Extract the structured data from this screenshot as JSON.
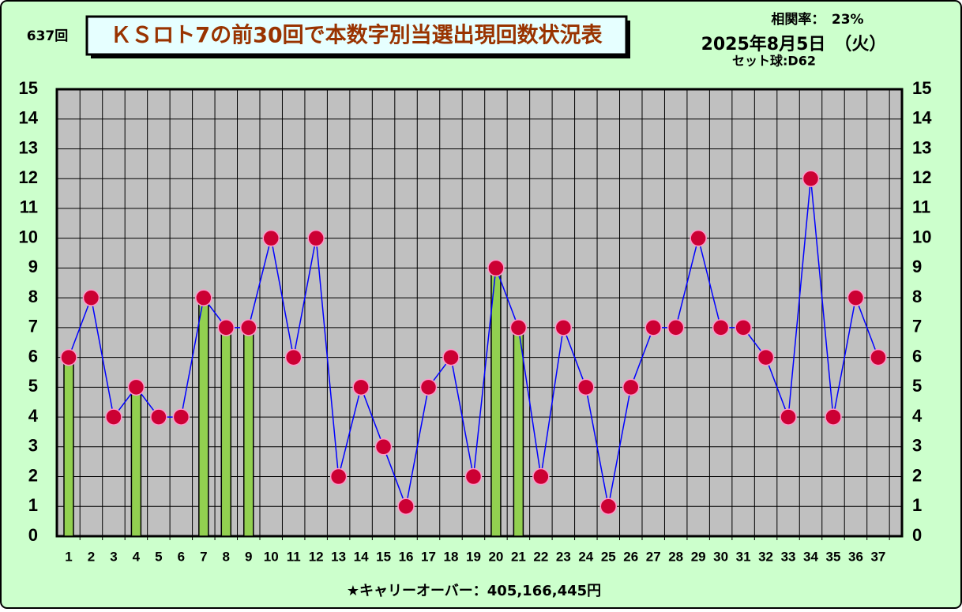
{
  "chart_data": {
    "type": "combo",
    "draw_no": "637回",
    "title": "ＫＳロト7の前30回で本数字別当選出現回数状況表",
    "correlation": "相関率：　23%",
    "date": "2025年8月5日　（火）",
    "set_ball": "セット球:D62",
    "footer": "★キャリーオーバー：405,166,445円",
    "categories": [
      "1",
      "2",
      "3",
      "4",
      "5",
      "6",
      "7",
      "8",
      "9",
      "10",
      "11",
      "12",
      "13",
      "14",
      "15",
      "16",
      "17",
      "18",
      "19",
      "20",
      "21",
      "22",
      "23",
      "24",
      "25",
      "26",
      "27",
      "28",
      "29",
      "30",
      "31",
      "32",
      "33",
      "34",
      "35",
      "36",
      "37"
    ],
    "series": [
      {
        "type": "bar",
        "color": "#92d050",
        "values": [
          6,
          null,
          null,
          5,
          null,
          null,
          8,
          7,
          7,
          null,
          null,
          null,
          null,
          null,
          null,
          null,
          null,
          null,
          null,
          9,
          7,
          null,
          null,
          null,
          null,
          null,
          null,
          null,
          null,
          null,
          null,
          null,
          null,
          null,
          null,
          null,
          null
        ]
      },
      {
        "type": "line",
        "color": "#0000ff",
        "marker_color": "#cc0033",
        "values": [
          6,
          8,
          4,
          5,
          4,
          4,
          8,
          7,
          7,
          10,
          6,
          10,
          2,
          5,
          3,
          1,
          5,
          6,
          2,
          9,
          7,
          2,
          7,
          5,
          1,
          5,
          7,
          7,
          10,
          7,
          7,
          6,
          4,
          12,
          4,
          8,
          6
        ]
      }
    ],
    "ylim": [
      0,
      15
    ],
    "yticks": [
      0,
      1,
      2,
      3,
      4,
      5,
      6,
      7,
      8,
      9,
      10,
      11,
      12,
      13,
      14,
      15
    ],
    "grid": true
  }
}
